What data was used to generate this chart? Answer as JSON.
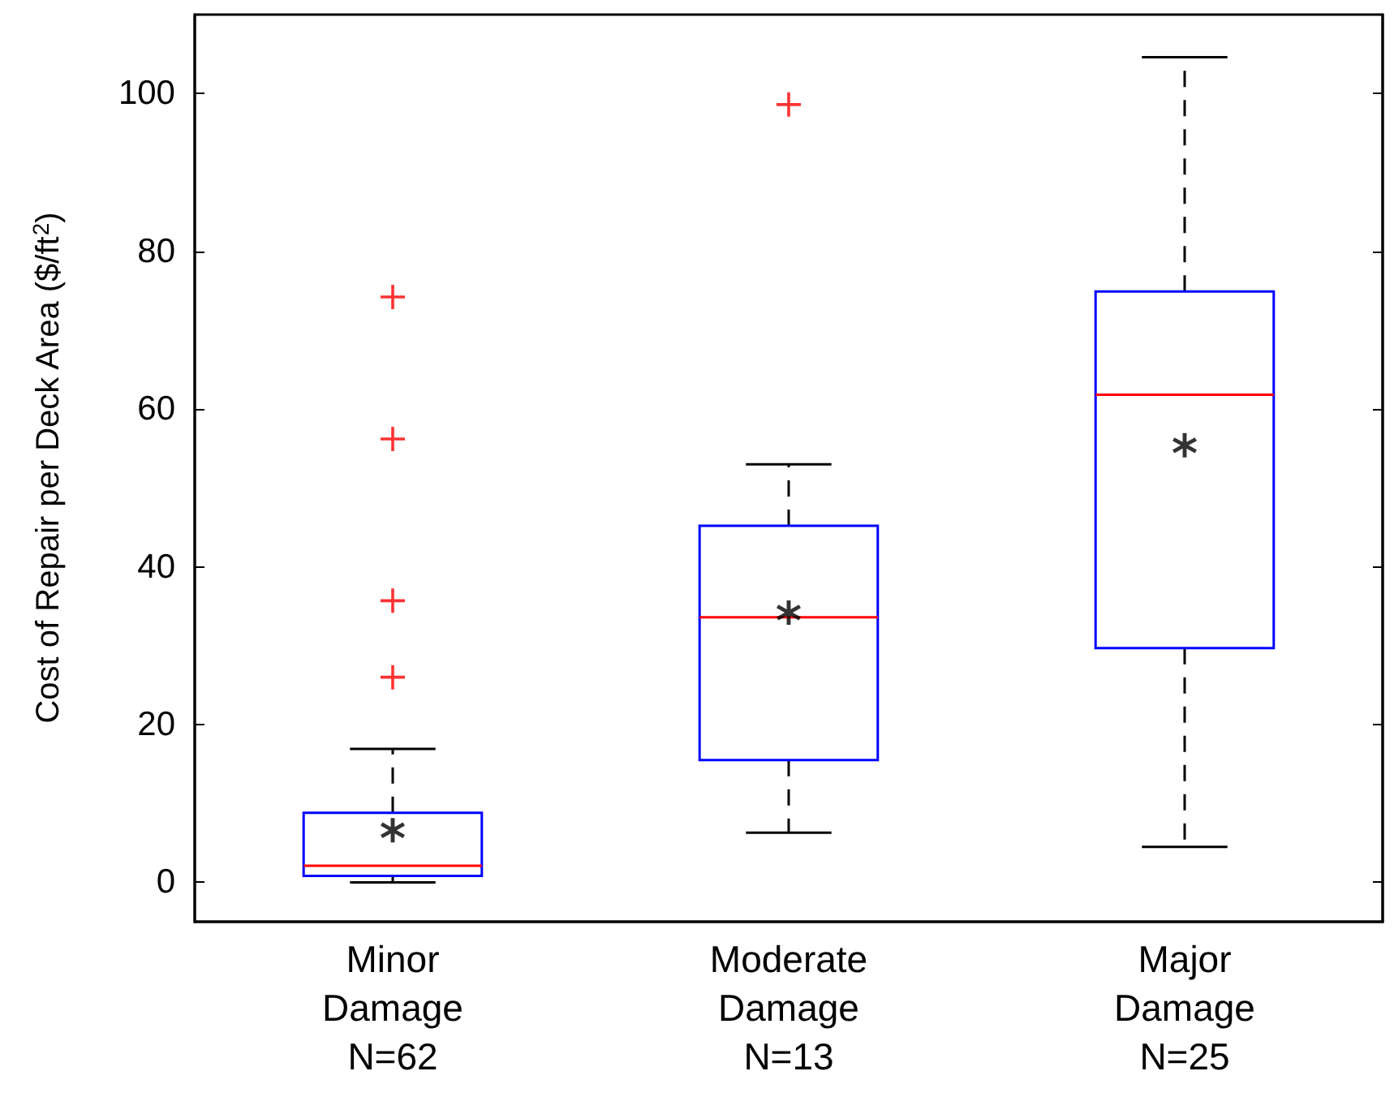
{
  "chart_data": {
    "type": "box",
    "ylabel": "Cost of Repair per Deck Area ($/ft$^{2}$)",
    "categories": [
      "Minor\nDamage\nN=62",
      "Moderate\nDamage\nN=13",
      "Major\nDamage\nN=25"
    ],
    "color": "#0000ff",
    "boxes": [
      {
        "low": 0,
        "q1": 0.8,
        "median": 2.1,
        "q3": 8.8,
        "high": 16.9,
        "mean": 6.6,
        "outliers": [
          26.0,
          35.7,
          56.2,
          74.2
        ]
      },
      {
        "low": 6.3,
        "q1": 15.5,
        "median": 33.6,
        "q3": 45.2,
        "high": 53.0,
        "mean": 34.2,
        "outliers": [
          98.6
        ]
      },
      {
        "low": 4.5,
        "q1": 29.7,
        "median": 61.8,
        "q3": 74.9,
        "high": 104.6,
        "mean": 55.4
      }
    ],
    "ylim": [
      -5,
      110
    ],
    "yticks": [
      0,
      20,
      40,
      60,
      80,
      100
    ],
    "line_style": "dashed"
  }
}
